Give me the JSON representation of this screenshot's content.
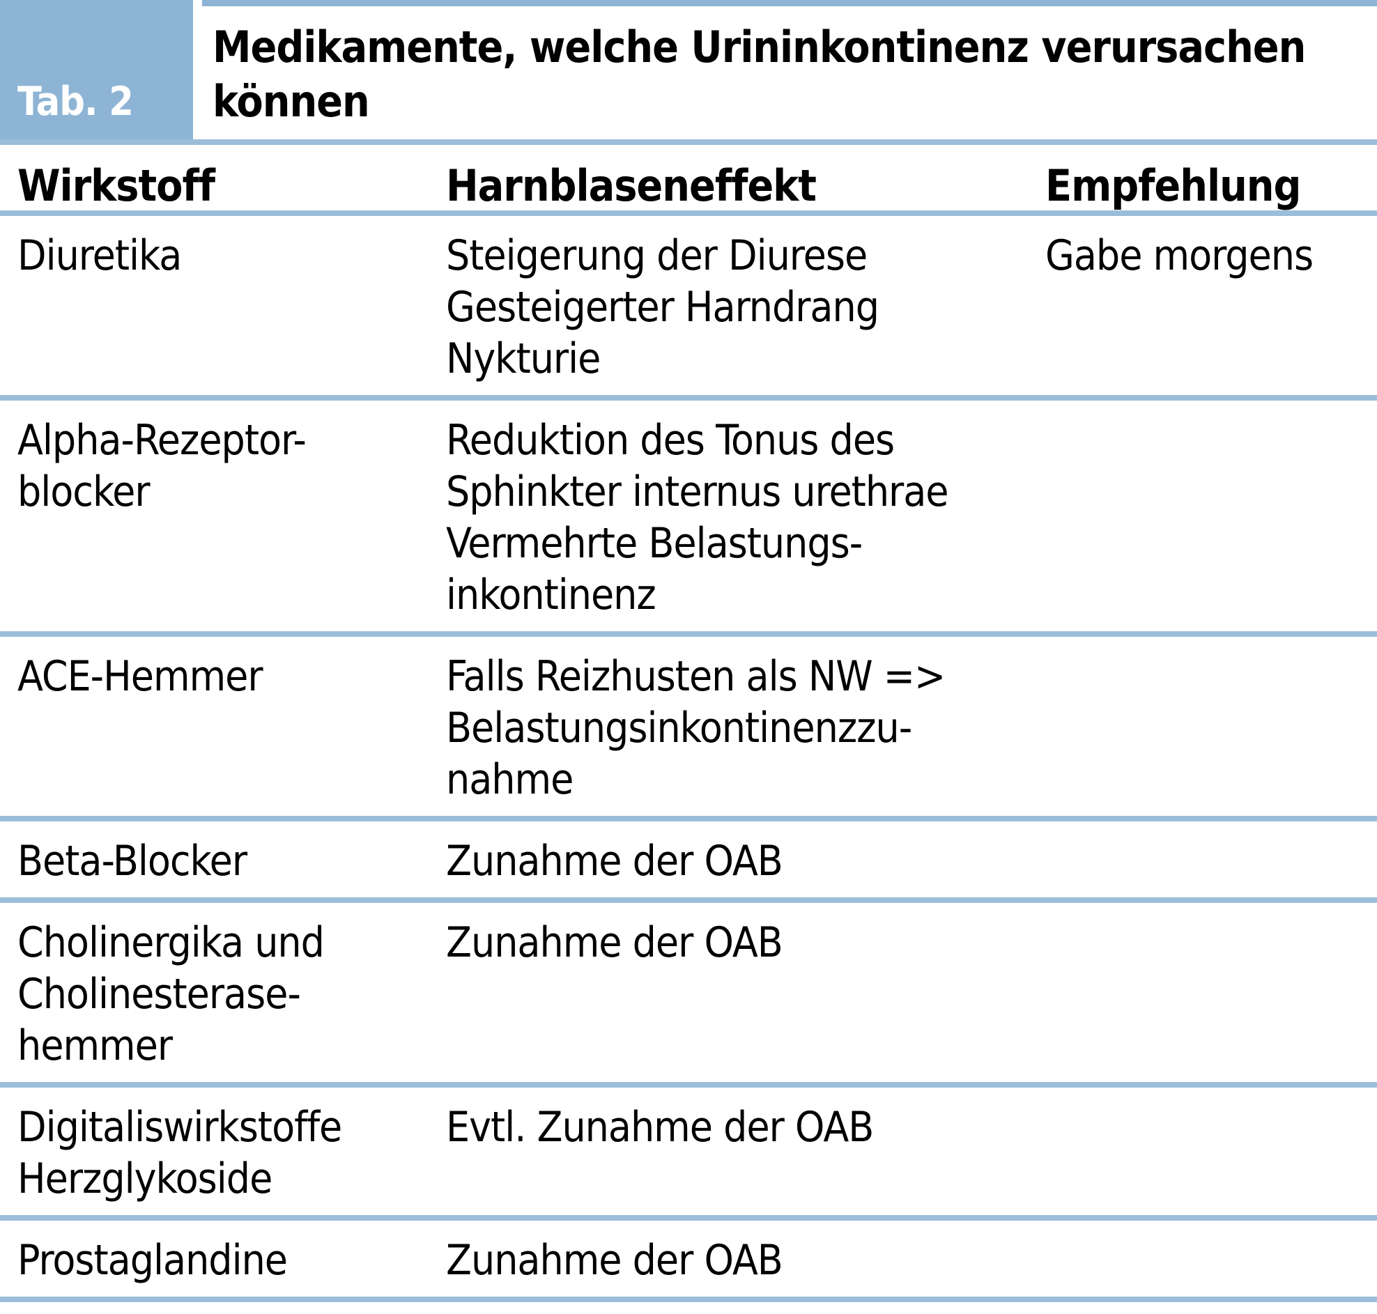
{
  "tab_label": "Tab. 2",
  "title": "Medikamente, welche Urininkontinenz verursachen\nkönnen",
  "columns": {
    "wirkstoff": "Wirkstoff",
    "effekt": "Harnblaseneffekt",
    "empfehlung": "Empfehlung"
  },
  "rows": [
    {
      "wirkstoff": "Diuretika",
      "effekt": "Steigerung der Diurese\nGesteigerter Harndrang\nNykturie",
      "empfehlung": "Gabe morgens"
    },
    {
      "wirkstoff": "Alpha-Rezeptor-\nblocker",
      "effekt": "Reduktion des Tonus des\nSphinkter internus urethrae\nVermehrte Belastungs-\ninkontinenz",
      "empfehlung": ""
    },
    {
      "wirkstoff": "ACE-Hemmer",
      "effekt": "Falls Reizhusten als NW =>\nBelastungsinkontinenzzu-\nnahme",
      "empfehlung": ""
    },
    {
      "wirkstoff": "Beta-Blocker",
      "effekt": "Zunahme der OAB",
      "empfehlung": ""
    },
    {
      "wirkstoff": "Cholinergika und\nCholinesterase-\nhemmer",
      "effekt": "Zunahme der OAB",
      "empfehlung": ""
    },
    {
      "wirkstoff": "Digitaliswirkstoffe\nHerzglykoside",
      "effekt": "Evtl. Zunahme der OAB",
      "empfehlung": ""
    },
    {
      "wirkstoff": "Prostaglandine",
      "effekt": "Zunahme der OAB",
      "empfehlung": ""
    }
  ],
  "colors": {
    "accent_blue": "#8DB4D4",
    "divider_blue": "#9BBDDA",
    "text": "#000000",
    "tab_text": "#FFFFFF"
  }
}
